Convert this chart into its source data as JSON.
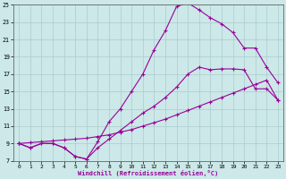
{
  "xlabel": "Windchill (Refroidissement éolien,°C)",
  "xlim_min": -0.5,
  "xlim_max": 23.5,
  "ylim_min": 7,
  "ylim_max": 25,
  "xticks": [
    0,
    1,
    2,
    3,
    4,
    5,
    6,
    7,
    8,
    9,
    10,
    11,
    12,
    13,
    14,
    15,
    16,
    17,
    18,
    19,
    20,
    21,
    22,
    23
  ],
  "yticks": [
    7,
    9,
    11,
    13,
    15,
    17,
    19,
    21,
    23,
    25
  ],
  "bg_color": "#cce8e8",
  "line_color": "#990099",
  "grid_color": "#aacccc",
  "line1_x": [
    0,
    1,
    2,
    3,
    4,
    5,
    6,
    7,
    8,
    9,
    10,
    11,
    12,
    13,
    14,
    15,
    16,
    17,
    18,
    19,
    20,
    21,
    22,
    23
  ],
  "line1_y": [
    9.0,
    8.5,
    9.0,
    9.0,
    8.5,
    7.5,
    7.2,
    8.5,
    9.5,
    10.5,
    11.5,
    12.5,
    13.3,
    14.3,
    15.5,
    17.0,
    17.8,
    17.5,
    17.6,
    17.6,
    17.5,
    15.3,
    15.3,
    14.0
  ],
  "line2_x": [
    0,
    1,
    2,
    3,
    4,
    5,
    6,
    7,
    8,
    9,
    10,
    11,
    12,
    13,
    14,
    15,
    16,
    17,
    18,
    19,
    20,
    21,
    22,
    23
  ],
  "line2_y": [
    9.0,
    8.5,
    9.0,
    9.0,
    8.5,
    7.5,
    7.2,
    9.2,
    11.5,
    13.0,
    15.0,
    17.0,
    19.8,
    22.0,
    24.8,
    25.2,
    24.4,
    23.5,
    22.8,
    21.8,
    20.0,
    20.0,
    17.8,
    16.0
  ],
  "line3_x": [
    0,
    1,
    2,
    3,
    4,
    5,
    6,
    7,
    8,
    9,
    10,
    11,
    12,
    13,
    14,
    15,
    16,
    17,
    18,
    19,
    20,
    21,
    22,
    23
  ],
  "line3_y": [
    9.0,
    9.1,
    9.2,
    9.3,
    9.4,
    9.5,
    9.6,
    9.8,
    10.0,
    10.3,
    10.6,
    11.0,
    11.4,
    11.8,
    12.3,
    12.8,
    13.3,
    13.8,
    14.3,
    14.8,
    15.3,
    15.8,
    16.3,
    14.0
  ]
}
